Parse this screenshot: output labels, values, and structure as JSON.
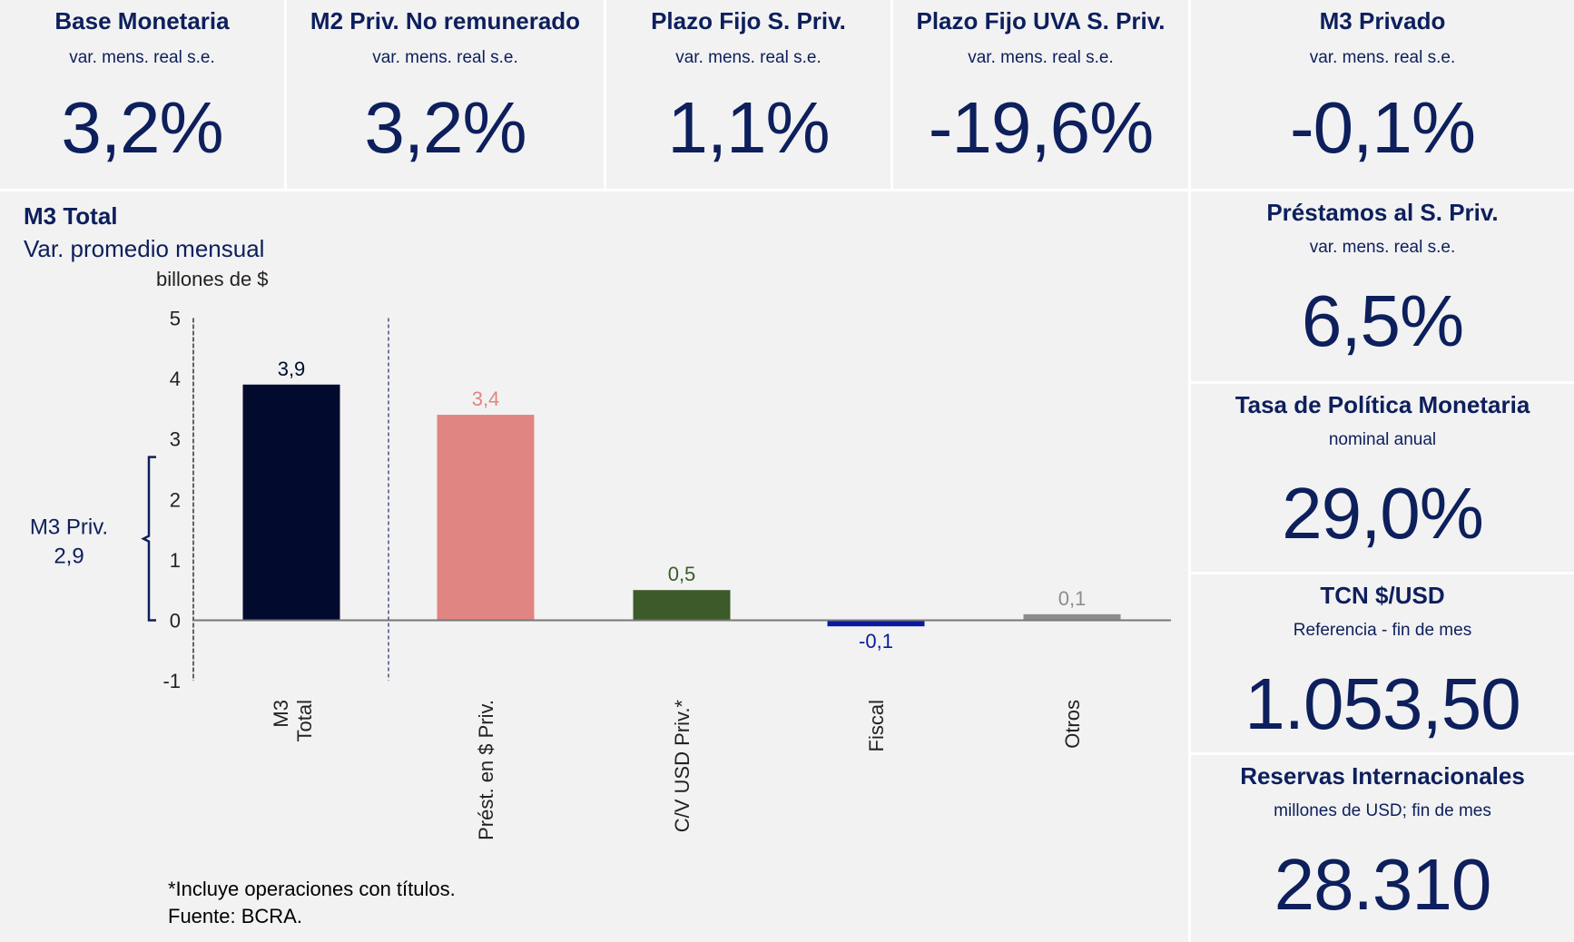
{
  "top_cards": [
    {
      "title": "Base Monetaria",
      "subtitle": "var. mens. real s.e.",
      "value": "3,2%"
    },
    {
      "title": "M2 Priv. No remunerado",
      "subtitle": "var. mens. real s.e.",
      "value": "3,2%"
    },
    {
      "title": "Plazo Fijo S. Priv.",
      "subtitle": "var. mens. real s.e.",
      "value": "1,1%"
    },
    {
      "title": "Plazo Fijo UVA S. Priv.",
      "subtitle": "var. mens. real s.e.",
      "value": "-19,6%"
    },
    {
      "title": "M3 Privado",
      "subtitle": "var. mens. real s.e.",
      "value": "-0,1%"
    }
  ],
  "right_cards": [
    {
      "title": "Préstamos al S. Priv.",
      "subtitle": "var. mens. real s.e.",
      "value": "6,5%"
    },
    {
      "title": "Tasa de Política Monetaria",
      "subtitle": "nominal anual",
      "value": "29,0%"
    },
    {
      "title": "TCN $/USD",
      "subtitle": "Referencia - fin de mes",
      "value": "1.053,50"
    },
    {
      "title": "Reservas Internacionales",
      "subtitle": "millones de USD; fin de mes",
      "value": "28.310"
    }
  ],
  "chart_data": {
    "type": "bar",
    "title": "M3 Total",
    "subtitle": "Var. promedio mensual",
    "ylabel": "billones de $",
    "ylim": [
      -1,
      5
    ],
    "yticks": [
      "-1",
      "0",
      "1",
      "2",
      "3",
      "4",
      "5"
    ],
    "categories": [
      "M3\nTotal",
      "Prést. en $ Priv.",
      "C/V USD Priv.*",
      "Fiscal",
      "Otros"
    ],
    "values": [
      3.9,
      3.4,
      0.5,
      -0.1,
      0.1
    ],
    "labels": [
      "3,9",
      "3,4",
      "0,5",
      "-0,1",
      "0,1"
    ],
    "colors": [
      "#020b2e",
      "#e08582",
      "#3d5a2a",
      "#0a1a9e",
      "#8c8c8c"
    ],
    "bracket": {
      "label": "M3 Priv.",
      "value": "2,9",
      "range": [
        0,
        2.7
      ]
    },
    "footnote": "*Incluye operaciones con títulos.",
    "source": "Fuente: BCRA."
  }
}
